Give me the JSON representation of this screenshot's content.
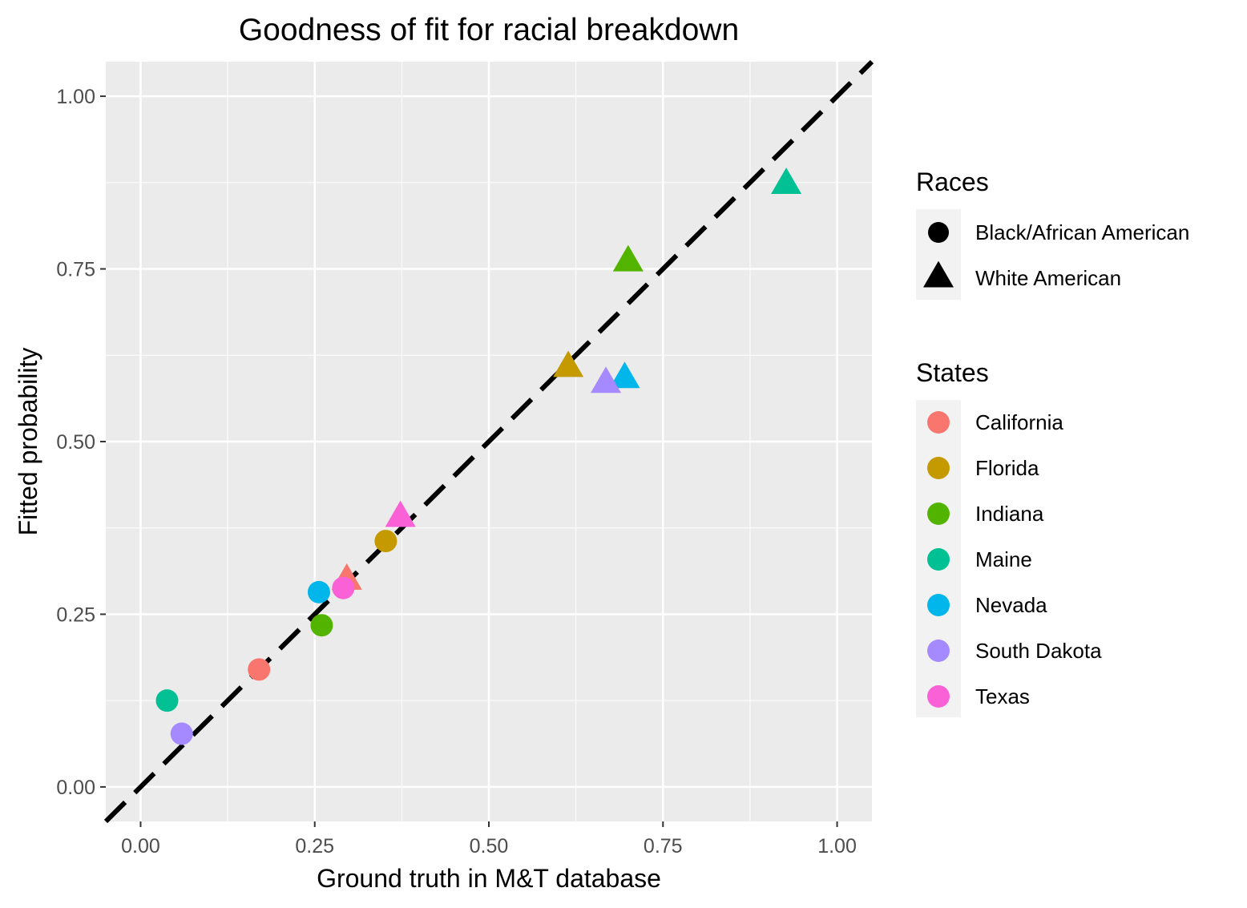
{
  "chart_data": {
    "type": "scatter",
    "title": "Goodness of fit for racial breakdown",
    "xlabel": "Ground truth in M&T database",
    "ylabel": "Fitted probability",
    "xlim": [
      -0.05,
      1.05
    ],
    "ylim": [
      -0.05,
      1.05
    ],
    "x_ticks": [
      "0.00",
      "0.25",
      "0.50",
      "0.75",
      "1.00"
    ],
    "y_ticks": [
      "0.00",
      "0.25",
      "0.50",
      "0.75",
      "1.00"
    ],
    "grid": true,
    "reference_line": {
      "style": "dashed",
      "slope": 1,
      "intercept": 0,
      "color": "#000000"
    },
    "legend_position": "right",
    "shape_legend": {
      "title": "Races",
      "entries": [
        {
          "label": "Black/African American",
          "shape": "circle"
        },
        {
          "label": "White American",
          "shape": "triangle"
        }
      ]
    },
    "color_legend": {
      "title": "States",
      "entries": [
        {
          "label": "California",
          "color": "#F8766D"
        },
        {
          "label": "Florida",
          "color": "#C49A00"
        },
        {
          "label": "Indiana",
          "color": "#53B400"
        },
        {
          "label": "Maine",
          "color": "#00C094"
        },
        {
          "label": "Nevada",
          "color": "#00B6EB"
        },
        {
          "label": "South Dakota",
          "color": "#A58AFF"
        },
        {
          "label": "Texas",
          "color": "#FB61D7"
        }
      ]
    },
    "points": [
      {
        "state": "California",
        "race": "Black/African American",
        "x": 0.17,
        "y": 0.17
      },
      {
        "state": "California",
        "race": "White American",
        "x": 0.296,
        "y": 0.3
      },
      {
        "state": "Florida",
        "race": "Black/African American",
        "x": 0.352,
        "y": 0.356
      },
      {
        "state": "Florida",
        "race": "White American",
        "x": 0.614,
        "y": 0.608
      },
      {
        "state": "Indiana",
        "race": "Black/African American",
        "x": 0.26,
        "y": 0.234
      },
      {
        "state": "Indiana",
        "race": "White American",
        "x": 0.7,
        "y": 0.761
      },
      {
        "state": "Maine",
        "race": "Black/African American",
        "x": 0.038,
        "y": 0.125
      },
      {
        "state": "Maine",
        "race": "White American",
        "x": 0.927,
        "y": 0.873
      },
      {
        "state": "Nevada",
        "race": "Black/African American",
        "x": 0.256,
        "y": 0.282
      },
      {
        "state": "Nevada",
        "race": "White American",
        "x": 0.695,
        "y": 0.592
      },
      {
        "state": "South Dakota",
        "race": "Black/African American",
        "x": 0.059,
        "y": 0.077
      },
      {
        "state": "South Dakota",
        "race": "White American",
        "x": 0.668,
        "y": 0.585
      },
      {
        "state": "Texas",
        "race": "Black/African American",
        "x": 0.291,
        "y": 0.288
      },
      {
        "state": "Texas",
        "race": "White American",
        "x": 0.373,
        "y": 0.391
      }
    ]
  }
}
